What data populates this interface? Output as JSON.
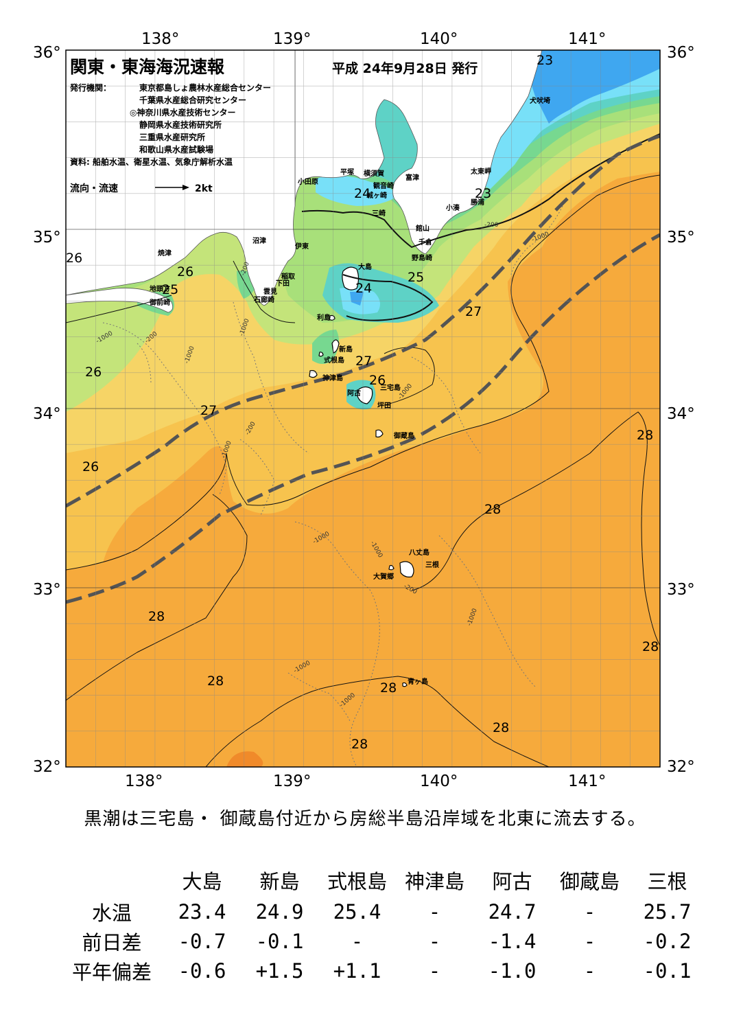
{
  "header": {
    "title": "関東・東海海況速報",
    "date": "平成 24年9月28日 発行",
    "issuer_label": "発行機関：",
    "issuers": [
      "東京都島しょ農林水産総合センター",
      "千葉県水産総合研究センター",
      "◎神奈川県水産技術センター",
      "静岡県水産技術研究所",
      "三重県水産研究所",
      "和歌山県水産試験場"
    ],
    "source": "資料: 船舶水温、衛星水温、気象庁解析水温",
    "current_legend": "流向・流速",
    "current_scale": "2kt"
  },
  "axes": {
    "lon_ticks": [
      "138°",
      "139°",
      "140°",
      "141°"
    ],
    "lat_ticks": [
      "36°",
      "35°",
      "34°",
      "33°",
      "32°"
    ],
    "lon_range": [
      137.5,
      141.5
    ],
    "lat_range": [
      32,
      36
    ]
  },
  "places": [
    "小田原",
    "平塚",
    "横須賀",
    "観音崎",
    "城ヶ崎",
    "三崎",
    "富津",
    "館山",
    "千倉",
    "野島崎",
    "犬吠埼",
    "太東岬",
    "勝浦",
    "小湊",
    "沼津",
    "伊東",
    "稲取",
    "下田",
    "雲見",
    "石廊崎",
    "焼津",
    "地頭方",
    "御前崎",
    "大島",
    "利島",
    "新島",
    "式根島",
    "神津島",
    "阿古",
    "三宅島",
    "坪田",
    "御蔵島",
    "八丈島",
    "三根",
    "大賀郷",
    "青ヶ島"
  ],
  "isotherm_labels": [
    "23",
    "23",
    "24",
    "25",
    "25",
    "26",
    "26",
    "26",
    "26",
    "27",
    "27",
    "27",
    "28",
    "28",
    "28",
    "28",
    "28",
    "28",
    "28",
    "28",
    "24",
    "26"
  ],
  "depth_labels": [
    "-1000",
    "-200"
  ],
  "colors": {
    "t23": "#3fa7f0",
    "t24": "#78e0f8",
    "t24b": "#5ed2c6",
    "t25": "#77d890",
    "t25b": "#a8e07a",
    "t26": "#c4e47a",
    "t27": "#f6d466",
    "t27b": "#f7c34e",
    "t28": "#f6aa3c",
    "land": "#ffffff",
    "kuroshio": "#545454"
  },
  "summary": "黒潮は三宅島・ 御蔵島付近から房総半島沿岸域を北東に流去する。",
  "table": {
    "columns": [
      "大島",
      "新島",
      "式根島",
      "神津島",
      "阿古",
      "御蔵島",
      "三根"
    ],
    "rows": [
      {
        "label": "水温",
        "values": [
          "23.4",
          "24.9",
          "25.4",
          "-",
          "24.7",
          "-",
          "25.7"
        ]
      },
      {
        "label": "前日差",
        "values": [
          "-0.7",
          "-0.1",
          "-",
          "-",
          "-1.4",
          "-",
          "-0.2"
        ]
      },
      {
        "label": "平年偏差",
        "values": [
          "-0.6",
          "+1.5",
          "+1.1",
          "-",
          "-1.0",
          "-",
          "-0.1"
        ]
      }
    ]
  }
}
